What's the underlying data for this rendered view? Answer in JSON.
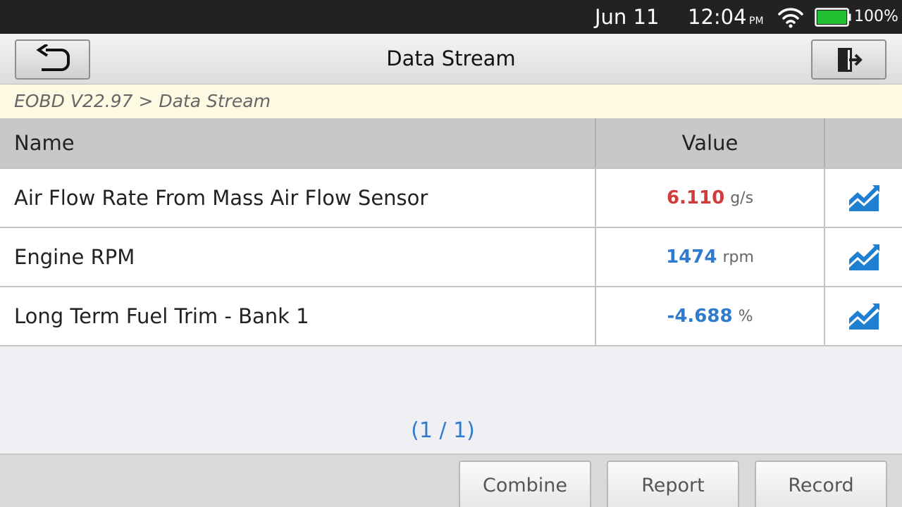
{
  "status_bar": {
    "date": "Jun 11",
    "time": "12:04",
    "ampm": "PM",
    "battery_percent": "100%",
    "battery_level": 1.0,
    "battery_color": "#22c033",
    "wifi_icon": "wifi-icon"
  },
  "title_bar": {
    "title": "Data Stream",
    "back_icon": "back-arrow-icon",
    "exit_icon": "exit-door-icon"
  },
  "breadcrumb": "EOBD V22.97 > Data Stream",
  "table": {
    "headers": {
      "name": "Name",
      "value": "Value",
      "graph": ""
    },
    "rows": [
      {
        "name": "Air Flow Rate From Mass Air Flow Sensor",
        "value": "6.110",
        "unit": "g/s",
        "value_color": "#d23b3b",
        "icon": "trend-graph-icon"
      },
      {
        "name": "Engine RPM",
        "value": "1474",
        "unit": "rpm",
        "value_color": "#2f7bd0",
        "icon": "trend-graph-icon"
      },
      {
        "name": "Long Term Fuel Trim - Bank 1",
        "value": "-4.688",
        "unit": "%",
        "value_color": "#2f7bd0",
        "icon": "trend-graph-icon"
      }
    ]
  },
  "pager": "(1 / 1)",
  "toolbar": {
    "combine": "Combine",
    "report": "Report",
    "record": "Record"
  },
  "colors": {
    "accent_blue": "#2f7bd0",
    "alert_red": "#d23b3b",
    "graph_icon": "#1f7fd0"
  }
}
